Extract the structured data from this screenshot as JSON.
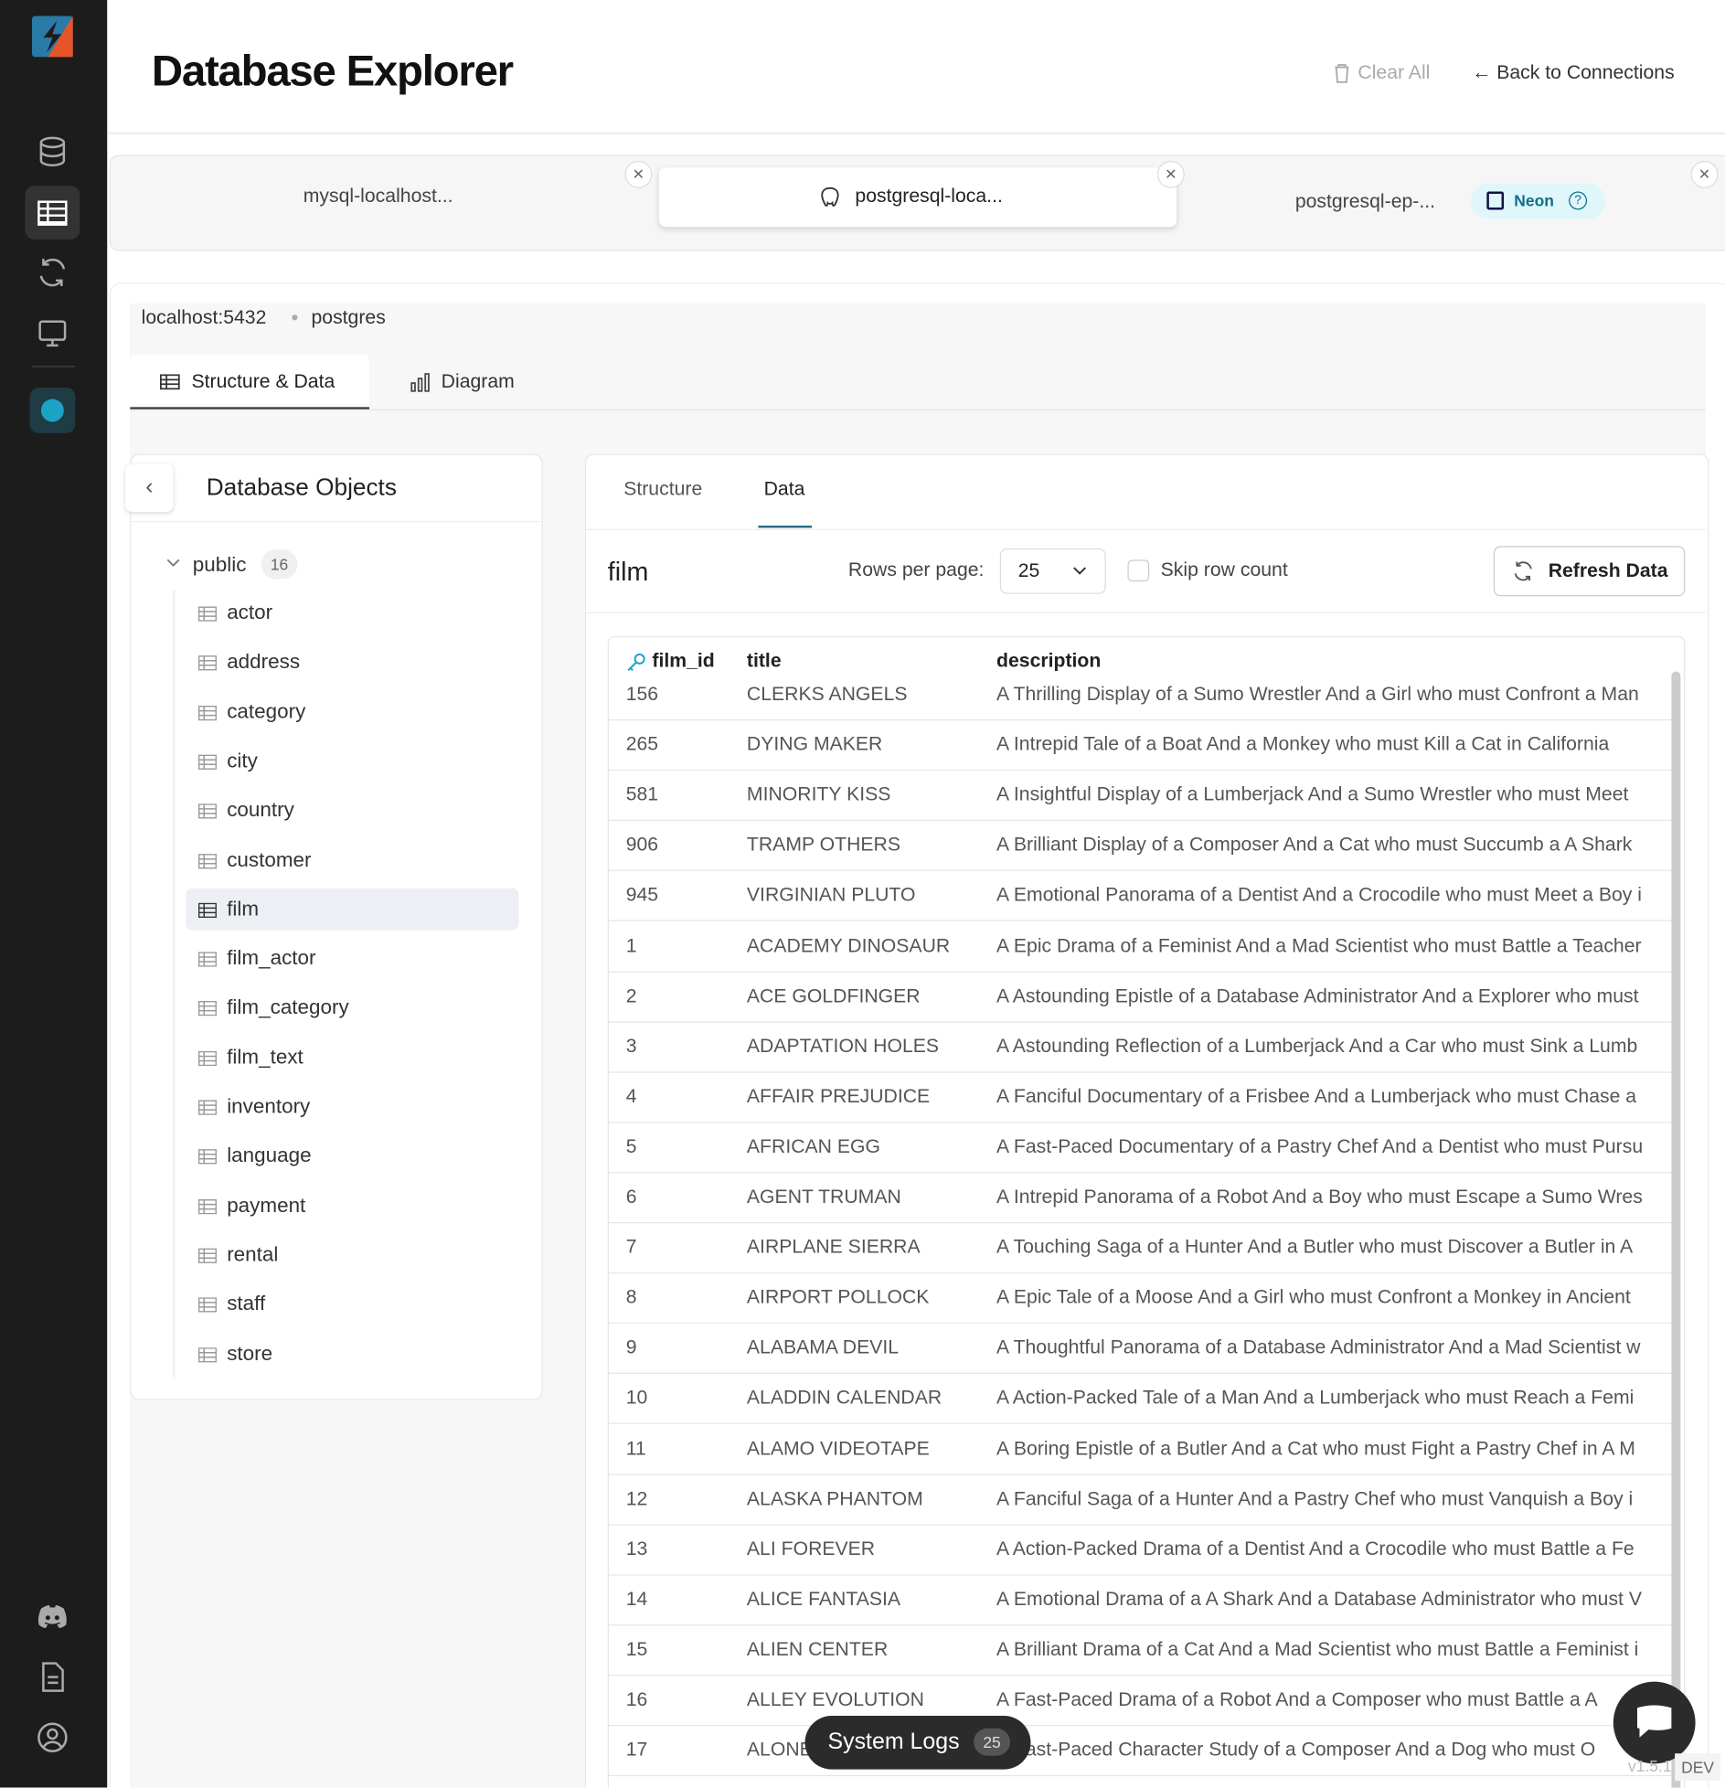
{
  "header": {
    "title": "Database Explorer",
    "clear_all": "Clear All",
    "back": "← Back to Connections"
  },
  "connections": [
    {
      "label": "mysql-localhost..."
    },
    {
      "label": "postgresql-loca..."
    },
    {
      "label": "postgresql-ep-...",
      "badge": "Neon"
    }
  ],
  "breadcrumb": {
    "host": "localhost:5432",
    "database": "postgres"
  },
  "view_tabs": [
    "Structure & Data",
    "Diagram"
  ],
  "sidebar": {
    "title": "Database Objects",
    "schema": "public",
    "count": "16",
    "tables": [
      "actor",
      "address",
      "category",
      "city",
      "country",
      "customer",
      "film",
      "film_actor",
      "film_category",
      "film_text",
      "inventory",
      "language",
      "payment",
      "rental",
      "staff",
      "store"
    ]
  },
  "data_tabs": [
    "Structure",
    "Data"
  ],
  "toolbar": {
    "table": "film",
    "rows_per_page_label": "Rows per page:",
    "rows_per_page": "25",
    "skip": "Skip row count",
    "refresh": "Refresh Data"
  },
  "grid": {
    "columns": [
      "film_id",
      "title",
      "description"
    ],
    "rows": [
      [
        "156",
        "CLERKS ANGELS",
        "A Thrilling Display of a Sumo Wrestler And a Girl who must Confront a Man"
      ],
      [
        "265",
        "DYING MAKER",
        "A Intrepid Tale of a Boat And a Monkey who must Kill a Cat in California"
      ],
      [
        "581",
        "MINORITY KISS",
        "A Insightful Display of a Lumberjack And a Sumo Wrestler who must Meet"
      ],
      [
        "906",
        "TRAMP OTHERS",
        "A Brilliant Display of a Composer And a Cat who must Succumb a A Shark"
      ],
      [
        "945",
        "VIRGINIAN PLUTO",
        "A Emotional Panorama of a Dentist And a Crocodile who must Meet a Boy i"
      ],
      [
        "1",
        "ACADEMY DINOSAUR",
        "A Epic Drama of a Feminist And a Mad Scientist who must Battle a Teacher"
      ],
      [
        "2",
        "ACE GOLDFINGER",
        "A Astounding Epistle of a Database Administrator And a Explorer who must"
      ],
      [
        "3",
        "ADAPTATION HOLES",
        "A Astounding Reflection of a Lumberjack And a Car who must Sink a Lumb"
      ],
      [
        "4",
        "AFFAIR PREJUDICE",
        "A Fanciful Documentary of a Frisbee And a Lumberjack who must Chase a"
      ],
      [
        "5",
        "AFRICAN EGG",
        "A Fast-Paced Documentary of a Pastry Chef And a Dentist who must Pursu"
      ],
      [
        "6",
        "AGENT TRUMAN",
        "A Intrepid Panorama of a Robot And a Boy who must Escape a Sumo Wres"
      ],
      [
        "7",
        "AIRPLANE SIERRA",
        "A Touching Saga of a Hunter And a Butler who must Discover a Butler in A"
      ],
      [
        "8",
        "AIRPORT POLLOCK",
        "A Epic Tale of a Moose And a Girl who must Confront a Monkey in Ancient"
      ],
      [
        "9",
        "ALABAMA DEVIL",
        "A Thoughtful Panorama of a Database Administrator And a Mad Scientist w"
      ],
      [
        "10",
        "ALADDIN CALENDAR",
        "A Action-Packed Tale of a Man And a Lumberjack who must Reach a Femi"
      ],
      [
        "11",
        "ALAMO VIDEOTAPE",
        "A Boring Epistle of a Butler And a Cat who must Fight a Pastry Chef in A M"
      ],
      [
        "12",
        "ALASKA PHANTOM",
        "A Fanciful Saga of a Hunter And a Pastry Chef who must Vanquish a Boy i"
      ],
      [
        "13",
        "ALI FOREVER",
        "A Action-Packed Drama of a Dentist And a Crocodile who must Battle a Fe"
      ],
      [
        "14",
        "ALICE FANTASIA",
        "A Emotional Drama of a A Shark And a Database Administrator who must V"
      ],
      [
        "15",
        "ALIEN CENTER",
        "A Brilliant Drama of a Cat And a Mad Scientist who must Battle a Feminist i"
      ],
      [
        "16",
        "ALLEY EVOLUTION",
        "A Fast-Paced Drama of a Robot And a Composer who must Battle a A"
      ],
      [
        "17",
        "ALONE TRIP",
        "A Fast-Paced Character Study of a Composer And a Dog who must O"
      ]
    ]
  },
  "footer": {
    "logs": "System Logs",
    "logs_count": "25",
    "version": "v1.5.1",
    "env": "DEV"
  }
}
